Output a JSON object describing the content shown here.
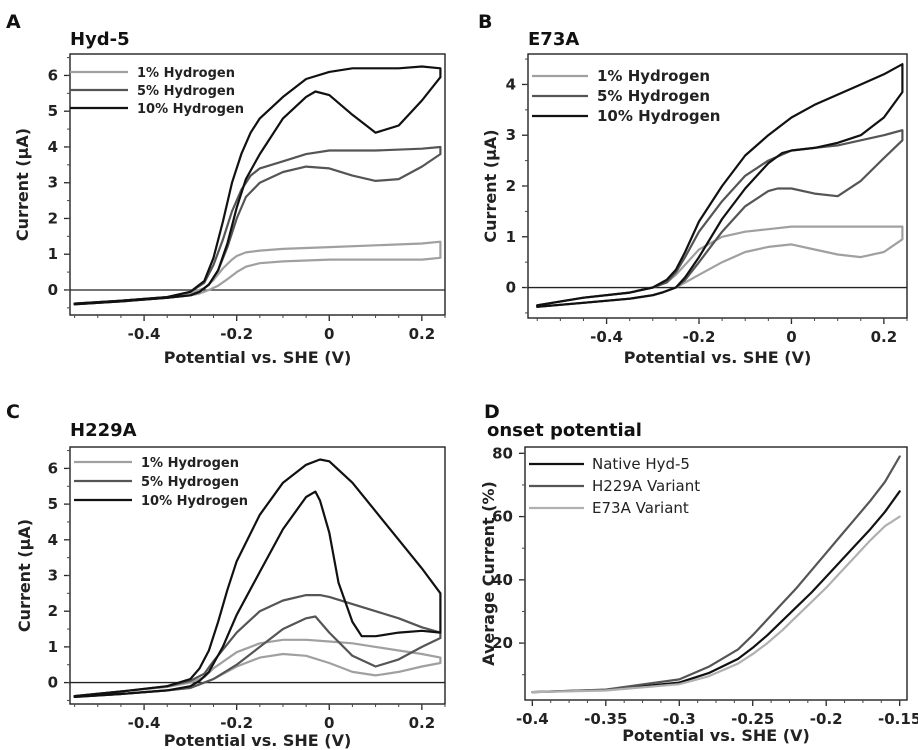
{
  "figure": {
    "panels": [
      "A",
      "B",
      "C",
      "D"
    ]
  },
  "chart_data": [
    {
      "panel": "A",
      "type": "line",
      "title": "Hyd-5",
      "xlabel": "Potential vs. SHE (V)",
      "ylabel": "Current (µA)",
      "xlim": [
        -0.56,
        0.25
      ],
      "ylim": [
        -0.7,
        6.6
      ],
      "xticks": [
        -0.4,
        -0.2,
        0,
        0.2
      ],
      "xtick_labels": [
        "-0.4",
        "-0.2",
        "0",
        "0.2"
      ],
      "yticks": [
        0,
        1,
        2,
        3,
        4,
        5,
        6
      ],
      "ytick_labels": [
        "0",
        "1",
        "2",
        "3",
        "4",
        "5",
        "6"
      ],
      "zero_line": true,
      "legend_position": "top-left",
      "series": [
        {
          "name": "1% Hydrogen",
          "color": "#a0a0a0",
          "x": [
            -0.55,
            -0.45,
            -0.35,
            -0.3,
            -0.27,
            -0.25,
            -0.23,
            -0.21,
            -0.2,
            -0.18,
            -0.15,
            -0.1,
            0.0,
            0.1,
            0.2,
            0.24,
            0.24,
            0.2,
            0.1,
            0.0,
            -0.1,
            -0.15,
            -0.18,
            -0.2,
            -0.22,
            -0.24,
            -0.26,
            -0.28,
            -0.3,
            -0.35,
            -0.45,
            -0.55
          ],
          "y": [
            -0.38,
            -0.3,
            -0.2,
            -0.08,
            0.05,
            0.28,
            0.6,
            0.85,
            0.95,
            1.05,
            1.1,
            1.15,
            1.2,
            1.25,
            1.3,
            1.35,
            0.9,
            0.85,
            0.85,
            0.85,
            0.8,
            0.75,
            0.65,
            0.5,
            0.3,
            0.12,
            0.0,
            -0.1,
            -0.15,
            -0.22,
            -0.32,
            -0.4
          ]
        },
        {
          "name": "5% Hydrogen",
          "color": "#555555",
          "x": [
            -0.55,
            -0.45,
            -0.35,
            -0.3,
            -0.27,
            -0.25,
            -0.23,
            -0.21,
            -0.19,
            -0.17,
            -0.15,
            -0.1,
            -0.05,
            0.0,
            0.1,
            0.2,
            0.24,
            0.24,
            0.2,
            0.15,
            0.1,
            0.05,
            0.0,
            -0.05,
            -0.1,
            -0.15,
            -0.18,
            -0.2,
            -0.22,
            -0.24,
            -0.26,
            -0.28,
            -0.3,
            -0.35,
            -0.45,
            -0.55
          ],
          "y": [
            -0.38,
            -0.3,
            -0.2,
            -0.05,
            0.2,
            0.7,
            1.4,
            2.2,
            2.8,
            3.2,
            3.4,
            3.6,
            3.8,
            3.9,
            3.9,
            3.95,
            4.0,
            3.8,
            3.45,
            3.1,
            3.05,
            3.2,
            3.4,
            3.45,
            3.3,
            3.0,
            2.6,
            2.0,
            1.2,
            0.55,
            0.15,
            -0.05,
            -0.15,
            -0.22,
            -0.32,
            -0.4
          ]
        },
        {
          "name": "10% Hydrogen",
          "color": "#111111",
          "x": [
            -0.55,
            -0.45,
            -0.35,
            -0.3,
            -0.27,
            -0.25,
            -0.23,
            -0.21,
            -0.19,
            -0.17,
            -0.15,
            -0.1,
            -0.05,
            0.0,
            0.05,
            0.1,
            0.15,
            0.2,
            0.24,
            0.24,
            0.2,
            0.15,
            0.1,
            0.05,
            0.0,
            -0.03,
            -0.05,
            -0.1,
            -0.15,
            -0.18,
            -0.2,
            -0.22,
            -0.24,
            -0.26,
            -0.28,
            -0.3,
            -0.35,
            -0.45,
            -0.55
          ],
          "y": [
            -0.38,
            -0.3,
            -0.2,
            -0.05,
            0.25,
            0.9,
            1.9,
            3.0,
            3.8,
            4.4,
            4.8,
            5.4,
            5.9,
            6.1,
            6.2,
            6.2,
            6.2,
            6.25,
            6.2,
            5.95,
            5.3,
            4.6,
            4.4,
            4.9,
            5.45,
            5.55,
            5.4,
            4.8,
            3.8,
            3.1,
            2.3,
            1.3,
            0.55,
            0.15,
            -0.05,
            -0.15,
            -0.22,
            -0.32,
            -0.4
          ]
        }
      ]
    },
    {
      "panel": "B",
      "type": "line",
      "title": "E73A",
      "xlabel": "Potential vs. SHE (V)",
      "ylabel": "Current (µA)",
      "xlim": [
        -0.57,
        0.25
      ],
      "ylim": [
        -0.6,
        4.6
      ],
      "xticks": [
        -0.4,
        -0.2,
        0,
        0.2
      ],
      "xtick_labels": [
        "-0.4",
        "-0.2",
        "0",
        "0.2"
      ],
      "yticks": [
        0,
        1,
        2,
        3,
        4
      ],
      "ytick_labels": [
        "0",
        "1",
        "2",
        "3",
        "4"
      ],
      "zero_line": true,
      "legend_position": "top-left",
      "series": [
        {
          "name": "1% Hydrogen",
          "color": "#a0a0a0",
          "x": [
            -0.55,
            -0.45,
            -0.35,
            -0.3,
            -0.27,
            -0.25,
            -0.23,
            -0.2,
            -0.15,
            -0.1,
            -0.05,
            0.0,
            0.1,
            0.2,
            0.24,
            0.24,
            0.2,
            0.15,
            0.1,
            0.05,
            0.0,
            -0.05,
            -0.1,
            -0.15,
            -0.2,
            -0.23,
            -0.25,
            -0.28,
            -0.3,
            -0.35,
            -0.45,
            -0.55
          ],
          "y": [
            -0.35,
            -0.2,
            -0.1,
            0.0,
            0.1,
            0.25,
            0.45,
            0.75,
            1.0,
            1.1,
            1.15,
            1.2,
            1.2,
            1.2,
            1.2,
            0.95,
            0.7,
            0.6,
            0.65,
            0.75,
            0.85,
            0.8,
            0.7,
            0.5,
            0.25,
            0.1,
            0.0,
            -0.1,
            -0.15,
            -0.22,
            -0.3,
            -0.38
          ]
        },
        {
          "name": "5% Hydrogen",
          "color": "#555555",
          "x": [
            -0.55,
            -0.45,
            -0.35,
            -0.3,
            -0.27,
            -0.25,
            -0.23,
            -0.2,
            -0.15,
            -0.1,
            -0.05,
            0.0,
            0.05,
            0.1,
            0.15,
            0.2,
            0.24,
            0.24,
            0.2,
            0.15,
            0.1,
            0.05,
            0.0,
            -0.03,
            -0.05,
            -0.1,
            -0.15,
            -0.2,
            -0.23,
            -0.25,
            -0.28,
            -0.3,
            -0.35,
            -0.45,
            -0.55
          ],
          "y": [
            -0.35,
            -0.2,
            -0.1,
            0.0,
            0.1,
            0.3,
            0.6,
            1.1,
            1.7,
            2.2,
            2.5,
            2.7,
            2.75,
            2.8,
            2.9,
            3.0,
            3.1,
            2.9,
            2.55,
            2.1,
            1.8,
            1.85,
            1.95,
            1.95,
            1.9,
            1.6,
            1.1,
            0.5,
            0.15,
            0.0,
            -0.1,
            -0.15,
            -0.22,
            -0.3,
            -0.38
          ]
        },
        {
          "name": "10% Hydrogen",
          "color": "#111111",
          "x": [
            -0.55,
            -0.45,
            -0.35,
            -0.3,
            -0.27,
            -0.25,
            -0.23,
            -0.2,
            -0.15,
            -0.1,
            -0.05,
            0.0,
            0.05,
            0.1,
            0.15,
            0.2,
            0.24,
            0.24,
            0.2,
            0.15,
            0.1,
            0.05,
            0.0,
            -0.02,
            -0.05,
            -0.1,
            -0.15,
            -0.2,
            -0.23,
            -0.25,
            -0.28,
            -0.3,
            -0.35,
            -0.45,
            -0.55
          ],
          "y": [
            -0.35,
            -0.2,
            -0.1,
            0.0,
            0.15,
            0.35,
            0.7,
            1.3,
            2.0,
            2.6,
            3.0,
            3.35,
            3.6,
            3.8,
            4.0,
            4.2,
            4.4,
            3.85,
            3.35,
            3.0,
            2.85,
            2.75,
            2.7,
            2.65,
            2.45,
            1.95,
            1.35,
            0.6,
            0.2,
            0.0,
            -0.1,
            -0.15,
            -0.22,
            -0.3,
            -0.38
          ]
        }
      ]
    },
    {
      "panel": "C",
      "type": "line",
      "title": "H229A",
      "xlabel": "Potential vs. SHE (V)",
      "ylabel": "Current (µA)",
      "xlim": [
        -0.56,
        0.25
      ],
      "ylim": [
        -0.6,
        6.6
      ],
      "xticks": [
        -0.4,
        -0.2,
        0,
        0.2
      ],
      "xtick_labels": [
        "-0.4",
        "-0.2",
        "0",
        "0.2"
      ],
      "yticks": [
        0,
        1,
        2,
        3,
        4,
        5,
        6
      ],
      "ytick_labels": [
        "0",
        "1",
        "2",
        "3",
        "4",
        "5",
        "6"
      ],
      "zero_line": true,
      "legend_position": "top-left",
      "series": [
        {
          "name": "1% Hydrogen",
          "color": "#a0a0a0",
          "x": [
            -0.55,
            -0.45,
            -0.35,
            -0.3,
            -0.27,
            -0.25,
            -0.2,
            -0.15,
            -0.1,
            -0.05,
            0.0,
            0.05,
            0.1,
            0.15,
            0.2,
            0.24,
            0.24,
            0.2,
            0.15,
            0.1,
            0.05,
            0.0,
            -0.05,
            -0.1,
            -0.15,
            -0.2,
            -0.25,
            -0.28,
            -0.3,
            -0.35,
            -0.45,
            -0.55
          ],
          "y": [
            -0.38,
            -0.25,
            -0.12,
            0.0,
            0.15,
            0.4,
            0.85,
            1.1,
            1.2,
            1.2,
            1.15,
            1.1,
            1.0,
            0.9,
            0.8,
            0.7,
            0.55,
            0.45,
            0.3,
            0.2,
            0.3,
            0.55,
            0.75,
            0.8,
            0.7,
            0.45,
            0.1,
            -0.05,
            -0.15,
            -0.22,
            -0.32,
            -0.4
          ]
        },
        {
          "name": "5% Hydrogen",
          "color": "#555555",
          "x": [
            -0.55,
            -0.45,
            -0.35,
            -0.3,
            -0.27,
            -0.25,
            -0.2,
            -0.15,
            -0.1,
            -0.05,
            -0.02,
            0.0,
            0.05,
            0.1,
            0.15,
            0.2,
            0.24,
            0.24,
            0.2,
            0.15,
            0.1,
            0.05,
            0.0,
            -0.03,
            -0.05,
            -0.1,
            -0.15,
            -0.2,
            -0.25,
            -0.28,
            -0.3,
            -0.35,
            -0.45,
            -0.55
          ],
          "y": [
            -0.38,
            -0.25,
            -0.1,
            0.05,
            0.25,
            0.6,
            1.4,
            2.0,
            2.3,
            2.45,
            2.45,
            2.4,
            2.2,
            2.0,
            1.8,
            1.55,
            1.4,
            1.25,
            1.0,
            0.65,
            0.45,
            0.75,
            1.4,
            1.85,
            1.8,
            1.5,
            1.0,
            0.5,
            0.1,
            -0.05,
            -0.15,
            -0.22,
            -0.32,
            -0.4
          ]
        },
        {
          "name": "10% Hydrogen",
          "color": "#111111",
          "x": [
            -0.55,
            -0.45,
            -0.35,
            -0.3,
            -0.28,
            -0.26,
            -0.24,
            -0.22,
            -0.2,
            -0.15,
            -0.1,
            -0.05,
            -0.02,
            0.0,
            0.05,
            0.1,
            0.15,
            0.2,
            0.24,
            0.24,
            0.2,
            0.15,
            0.1,
            0.07,
            0.05,
            0.02,
            0.0,
            -0.02,
            -0.03,
            -0.05,
            -0.1,
            -0.15,
            -0.2,
            -0.23,
            -0.26,
            -0.28,
            -0.3,
            -0.35,
            -0.45,
            -0.55
          ],
          "y": [
            -0.38,
            -0.25,
            -0.1,
            0.1,
            0.4,
            0.9,
            1.7,
            2.6,
            3.4,
            4.7,
            5.6,
            6.1,
            6.25,
            6.2,
            5.6,
            4.8,
            4.0,
            3.2,
            2.5,
            1.4,
            1.45,
            1.4,
            1.3,
            1.3,
            1.7,
            2.8,
            4.2,
            5.1,
            5.35,
            5.2,
            4.3,
            3.1,
            1.9,
            1.0,
            0.3,
            0.05,
            -0.1,
            -0.22,
            -0.32,
            -0.4
          ]
        }
      ]
    },
    {
      "panel": "D",
      "type": "line",
      "title": "onset potential",
      "xlabel": "Potential vs. SHE (V)",
      "ylabel": "Average Current (%)",
      "xlim": [
        -0.405,
        -0.145
      ],
      "ylim": [
        2,
        82
      ],
      "xticks": [
        -0.4,
        -0.35,
        -0.3,
        -0.25,
        -0.2,
        -0.15
      ],
      "xtick_labels": [
        "-0.4",
        "-0.35",
        "-0.3",
        "-0.25",
        "-0.2",
        "-0.15"
      ],
      "yticks": [
        20,
        40,
        60,
        80
      ],
      "ytick_labels": [
        "20",
        "40",
        "60",
        "80"
      ],
      "zero_line": false,
      "legend_position": "top-left",
      "series": [
        {
          "name": "Native Hyd-5",
          "color": "#111111",
          "x": [
            -0.4,
            -0.35,
            -0.3,
            -0.28,
            -0.26,
            -0.25,
            -0.24,
            -0.23,
            -0.22,
            -0.21,
            -0.2,
            -0.19,
            -0.18,
            -0.17,
            -0.16,
            -0.15
          ],
          "y": [
            4.5,
            5.2,
            7.5,
            10.5,
            15.0,
            18.5,
            22.5,
            27.0,
            31.5,
            36.0,
            41.0,
            46.0,
            51.0,
            56.0,
            61.5,
            68.0
          ]
        },
        {
          "name": "H229A Variant",
          "color": "#555555",
          "x": [
            -0.4,
            -0.35,
            -0.3,
            -0.28,
            -0.26,
            -0.25,
            -0.24,
            -0.23,
            -0.22,
            -0.21,
            -0.2,
            -0.19,
            -0.18,
            -0.17,
            -0.16,
            -0.15
          ],
          "y": [
            4.5,
            5.3,
            8.5,
            12.5,
            18.0,
            22.5,
            27.5,
            32.5,
            37.5,
            43.0,
            48.5,
            54.0,
            59.5,
            65.0,
            71.0,
            79.0
          ]
        },
        {
          "name": "E73A Variant",
          "color": "#b0b0b0",
          "x": [
            -0.4,
            -0.35,
            -0.3,
            -0.28,
            -0.26,
            -0.25,
            -0.24,
            -0.23,
            -0.22,
            -0.21,
            -0.2,
            -0.19,
            -0.18,
            -0.17,
            -0.16,
            -0.15
          ],
          "y": [
            4.5,
            5.0,
            7.0,
            9.5,
            13.5,
            16.5,
            20.0,
            24.0,
            28.5,
            33.0,
            37.5,
            42.5,
            47.5,
            52.5,
            57.0,
            60.0
          ]
        }
      ]
    }
  ]
}
